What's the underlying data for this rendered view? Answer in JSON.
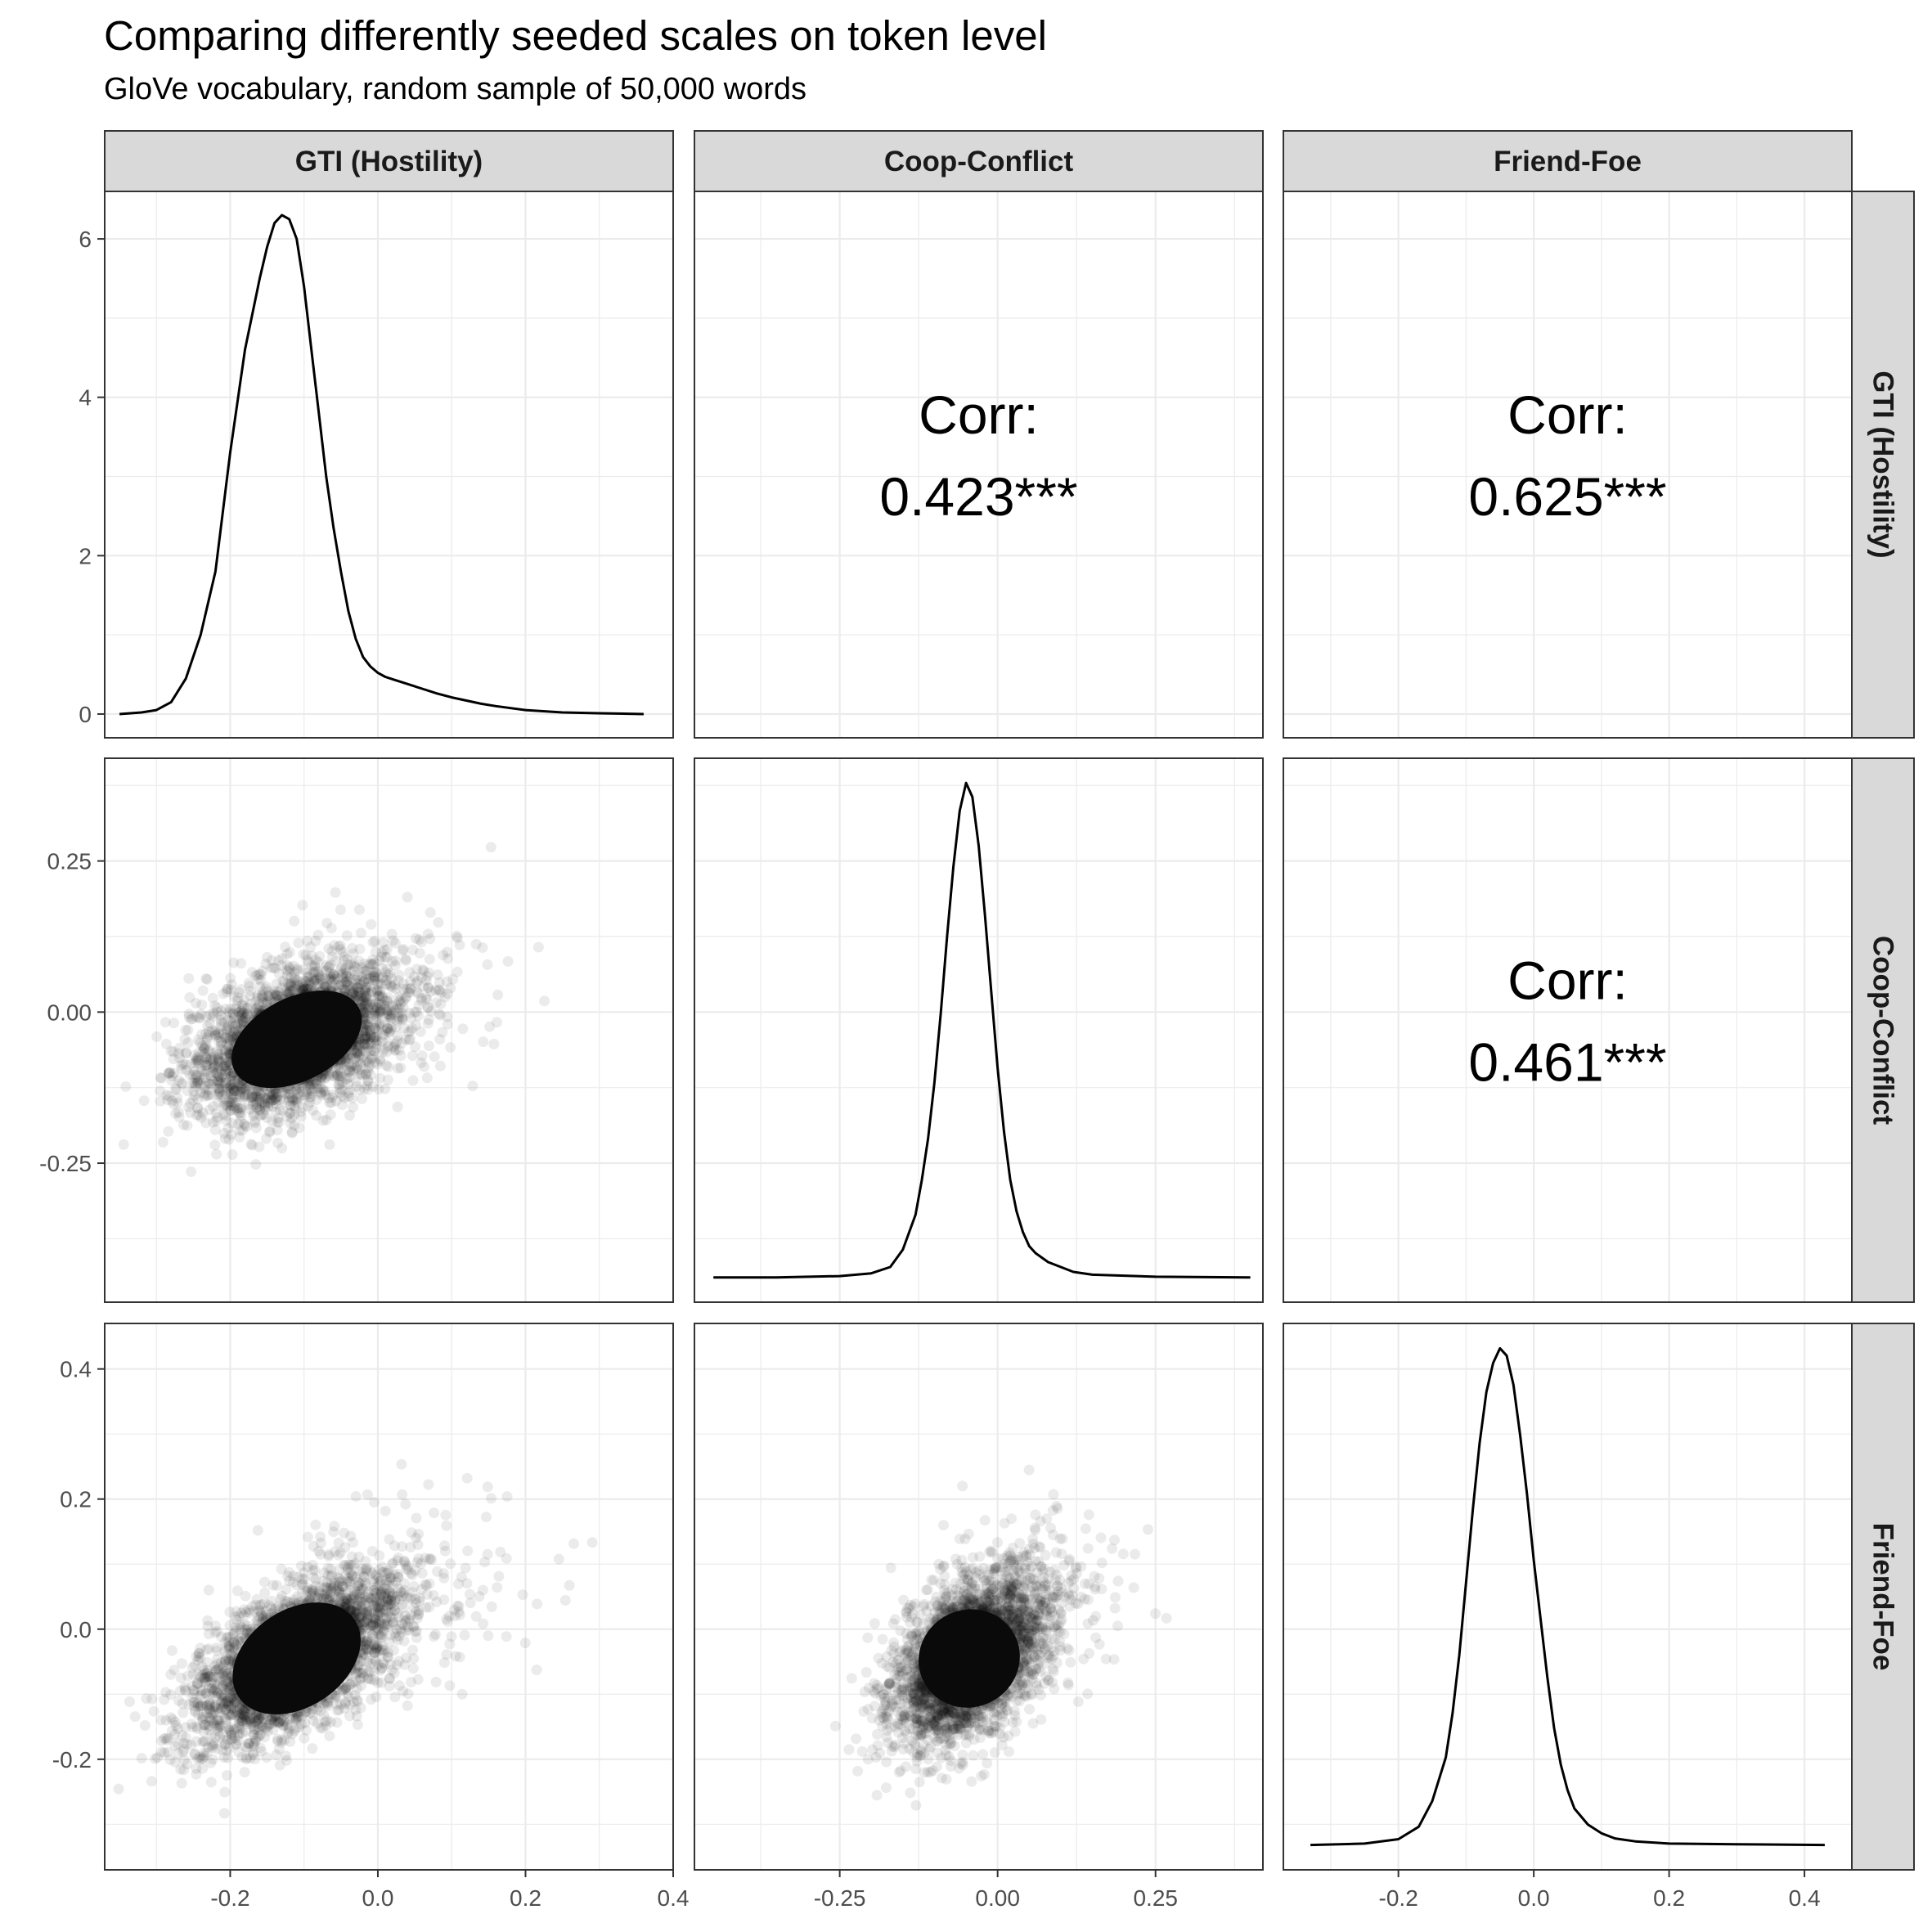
{
  "header": {
    "title": "Comparing differently seeded scales on token level",
    "subtitle": "GloVe vocabulary, random sample of 50,000 words"
  },
  "chart_data": {
    "type": "scatter",
    "layout": "pairs-matrix",
    "variables": [
      "GTI (Hostility)",
      "Coop-Conflict",
      "Friend-Foe"
    ],
    "n_points": 50000,
    "axes": {
      "GTI (Hostility)": {
        "x_range": [
          -0.37,
          0.4
        ],
        "x_ticks": [
          -0.2,
          0.0,
          0.2,
          0.4
        ],
        "x_tick_labels": [
          "-0.2",
          "0.0",
          "0.2",
          "0.4"
        ]
      },
      "Coop-Conflict": {
        "x_range": [
          -0.48,
          0.42
        ],
        "x_ticks": [
          -0.25,
          0.0,
          0.25
        ],
        "x_tick_labels": [
          "-0.25",
          "0.00",
          "0.25"
        ]
      },
      "Friend-Foe": {
        "x_range": [
          -0.37,
          0.47
        ],
        "x_ticks": [
          -0.2,
          0.0,
          0.2,
          0.4
        ],
        "x_tick_labels": [
          "-0.2",
          "0.0",
          "0.2",
          "0.4"
        ]
      }
    },
    "row_axes": {
      "GTI (Hostility)": {
        "y_range": [
          -0.3,
          6.6
        ],
        "y_ticks": [
          0,
          2,
          4,
          6
        ],
        "y_tick_labels": [
          "0",
          "2",
          "4",
          "6"
        ]
      },
      "Coop-Conflict": {
        "y_range": [
          -0.48,
          0.42
        ],
        "y_ticks": [
          -0.25,
          0.0,
          0.25
        ],
        "y_tick_labels": [
          "-0.25",
          "0.00",
          "0.25"
        ]
      },
      "Friend-Foe": {
        "y_range": [
          -0.37,
          0.47
        ],
        "y_ticks": [
          -0.2,
          0.0,
          0.2,
          0.4
        ],
        "y_tick_labels": [
          "-0.2",
          "0.0",
          "0.2",
          "0.4"
        ]
      }
    },
    "correlations": [
      {
        "row": "GTI (Hostility)",
        "col": "Coop-Conflict",
        "label": "Corr:",
        "value": "0.423***"
      },
      {
        "row": "GTI (Hostility)",
        "col": "Friend-Foe",
        "label": "Corr:",
        "value": "0.625***"
      },
      {
        "row": "Coop-Conflict",
        "col": "Friend-Foe",
        "label": "Corr:",
        "value": "0.461***"
      }
    ],
    "densities": {
      "GTI (Hostility)": {
        "x": [
          -0.35,
          -0.32,
          -0.3,
          -0.28,
          -0.26,
          -0.24,
          -0.22,
          -0.2,
          -0.18,
          -0.16,
          -0.15,
          -0.14,
          -0.13,
          -0.12,
          -0.11,
          -0.1,
          -0.09,
          -0.08,
          -0.07,
          -0.06,
          -0.05,
          -0.04,
          -0.03,
          -0.02,
          -0.01,
          0.0,
          0.01,
          0.02,
          0.04,
          0.06,
          0.08,
          0.1,
          0.12,
          0.14,
          0.16,
          0.2,
          0.25,
          0.3,
          0.36
        ],
        "y": [
          0.0,
          0.02,
          0.05,
          0.15,
          0.45,
          1.0,
          1.8,
          3.3,
          4.6,
          5.5,
          5.9,
          6.2,
          6.3,
          6.25,
          6.0,
          5.4,
          4.6,
          3.8,
          3.0,
          2.35,
          1.8,
          1.3,
          0.95,
          0.72,
          0.6,
          0.52,
          0.47,
          0.44,
          0.38,
          0.32,
          0.26,
          0.21,
          0.17,
          0.13,
          0.1,
          0.05,
          0.02,
          0.01,
          0.0
        ]
      },
      "Coop-Conflict": {
        "x": [
          -0.45,
          -0.35,
          -0.25,
          -0.2,
          -0.17,
          -0.15,
          -0.13,
          -0.12,
          -0.11,
          -0.1,
          -0.09,
          -0.08,
          -0.07,
          -0.06,
          -0.05,
          -0.04,
          -0.03,
          -0.02,
          -0.01,
          0.0,
          0.01,
          0.02,
          0.03,
          0.04,
          0.05,
          0.06,
          0.08,
          0.1,
          0.12,
          0.15,
          0.25,
          0.4
        ],
        "y": [
          0.0,
          0.0,
          0.02,
          0.06,
          0.15,
          0.4,
          0.9,
          1.4,
          2.0,
          2.8,
          3.8,
          4.9,
          5.9,
          6.7,
          7.1,
          6.9,
          6.2,
          5.2,
          4.1,
          3.0,
          2.1,
          1.4,
          0.95,
          0.65,
          0.45,
          0.35,
          0.22,
          0.15,
          0.08,
          0.04,
          0.01,
          0.0
        ]
      },
      "Friend-Foe": {
        "x": [
          -0.33,
          -0.25,
          -0.2,
          -0.17,
          -0.15,
          -0.13,
          -0.12,
          -0.11,
          -0.1,
          -0.09,
          -0.08,
          -0.07,
          -0.06,
          -0.05,
          -0.04,
          -0.03,
          -0.02,
          -0.01,
          0.0,
          0.01,
          0.02,
          0.03,
          0.04,
          0.05,
          0.06,
          0.08,
          0.1,
          0.12,
          0.15,
          0.2,
          0.3,
          0.43
        ],
        "y": [
          0.0,
          0.02,
          0.08,
          0.25,
          0.6,
          1.2,
          1.8,
          2.6,
          3.6,
          4.6,
          5.5,
          6.2,
          6.6,
          6.8,
          6.7,
          6.3,
          5.6,
          4.8,
          3.9,
          3.1,
          2.3,
          1.6,
          1.1,
          0.75,
          0.5,
          0.28,
          0.16,
          0.09,
          0.05,
          0.02,
          0.01,
          0.0
        ]
      }
    },
    "scatter_panels": [
      {
        "x": "GTI (Hostility)",
        "y": "Coop-Conflict",
        "mean": [
          -0.11,
          -0.045
        ],
        "sd": [
          0.07,
          0.06
        ],
        "corr": 0.42
      },
      {
        "x": "GTI (Hostility)",
        "y": "Friend-Foe",
        "mean": [
          -0.11,
          -0.045
        ],
        "sd": [
          0.07,
          0.065
        ],
        "corr": 0.62
      },
      {
        "x": "Coop-Conflict",
        "y": "Friend-Foe",
        "mean": [
          -0.045,
          -0.045
        ],
        "sd": [
          0.06,
          0.065
        ],
        "corr": 0.46
      }
    ],
    "grid": true,
    "theme": "bw",
    "point_color": "#000000",
    "point_alpha": 0.08
  }
}
